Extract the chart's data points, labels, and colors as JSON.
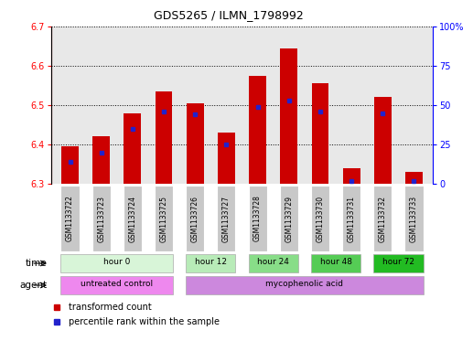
{
  "title": "GDS5265 / ILMN_1798992",
  "samples": [
    "GSM1133722",
    "GSM1133723",
    "GSM1133724",
    "GSM1133725",
    "GSM1133726",
    "GSM1133727",
    "GSM1133728",
    "GSM1133729",
    "GSM1133730",
    "GSM1133731",
    "GSM1133732",
    "GSM1133733"
  ],
  "bar_bottom": 6.3,
  "bar_tops": [
    6.395,
    6.42,
    6.48,
    6.535,
    6.505,
    6.43,
    6.575,
    6.645,
    6.555,
    6.34,
    6.52,
    6.33
  ],
  "percentile_values": [
    0.14,
    0.2,
    0.35,
    0.46,
    0.44,
    0.25,
    0.49,
    0.53,
    0.46,
    0.02,
    0.45,
    0.02
  ],
  "ylim_left": [
    6.3,
    6.7
  ],
  "ylim_right": [
    0,
    100
  ],
  "yticks_left": [
    6.3,
    6.4,
    6.5,
    6.6,
    6.7
  ],
  "yticks_right": [
    0,
    25,
    50,
    75,
    100
  ],
  "bar_color": "#cc0000",
  "percentile_color": "#2222cc",
  "bg_color": "#e8e8e8",
  "sample_cell_color": "#c8c8c8",
  "time_groups": [
    {
      "label": "hour 0",
      "start": 0,
      "end": 4,
      "color": "#d8f5d8"
    },
    {
      "label": "hour 12",
      "start": 4,
      "end": 6,
      "color": "#b8ebb8"
    },
    {
      "label": "hour 24",
      "start": 6,
      "end": 8,
      "color": "#88dd88"
    },
    {
      "label": "hour 48",
      "start": 8,
      "end": 10,
      "color": "#55cc55"
    },
    {
      "label": "hour 72",
      "start": 10,
      "end": 12,
      "color": "#22bb22"
    }
  ],
  "agent_groups": [
    {
      "label": "untreated control",
      "start": 0,
      "end": 4,
      "color": "#ee88ee"
    },
    {
      "label": "mycophenolic acid",
      "start": 4,
      "end": 12,
      "color": "#cc88dd"
    }
  ],
  "legend_items": [
    {
      "label": "transformed count",
      "color": "#cc0000"
    },
    {
      "label": "percentile rank within the sample",
      "color": "#2222cc"
    }
  ]
}
